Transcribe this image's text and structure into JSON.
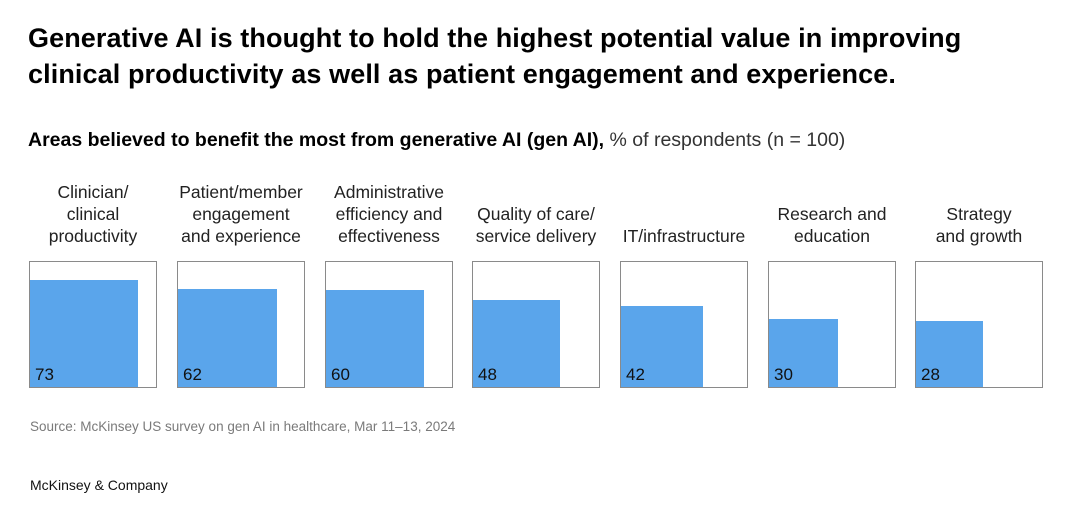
{
  "headline_lines": [
    "Generative AI is thought to hold the highest potential value in improving",
    "clinical productivity as well as patient engagement and experience."
  ],
  "subtitle": {
    "bold": "Areas believed to benefit the most from generative AI (gen AI),",
    "normal": "% of respondents (n = 100)"
  },
  "chart_data": {
    "type": "bar",
    "title": "Areas believed to benefit the most from generative AI (gen AI), % of respondents (n = 100)",
    "categories": [
      "Clinician/ clinical productivity",
      "Patient/member engagement and experience",
      "Administrative efficiency and effectiveness",
      "Quality of care/ service delivery",
      "IT/infrastructure",
      "Research and education",
      "Strategy and growth"
    ],
    "category_lines": [
      [
        "Clinician/",
        "clinical",
        "productivity"
      ],
      [
        "Patient/member",
        "engagement",
        "and experience"
      ],
      [
        "Administrative",
        "efficiency and",
        "effectiveness"
      ],
      [
        "Quality of care/",
        "service delivery"
      ],
      [
        "IT/infrastructure"
      ],
      [
        "Research and",
        "education"
      ],
      [
        "Strategy",
        "and growth"
      ]
    ],
    "values": [
      73,
      62,
      60,
      48,
      42,
      30,
      28
    ],
    "ylim": [
      0,
      100
    ],
    "xlabel": "",
    "ylabel": "% of respondents",
    "bar_color": "#5aa5eb"
  },
  "source": "Source: McKinsey US survey on gen AI in healthcare, Mar 11–13, 2024",
  "brand": "McKinsey & Company"
}
